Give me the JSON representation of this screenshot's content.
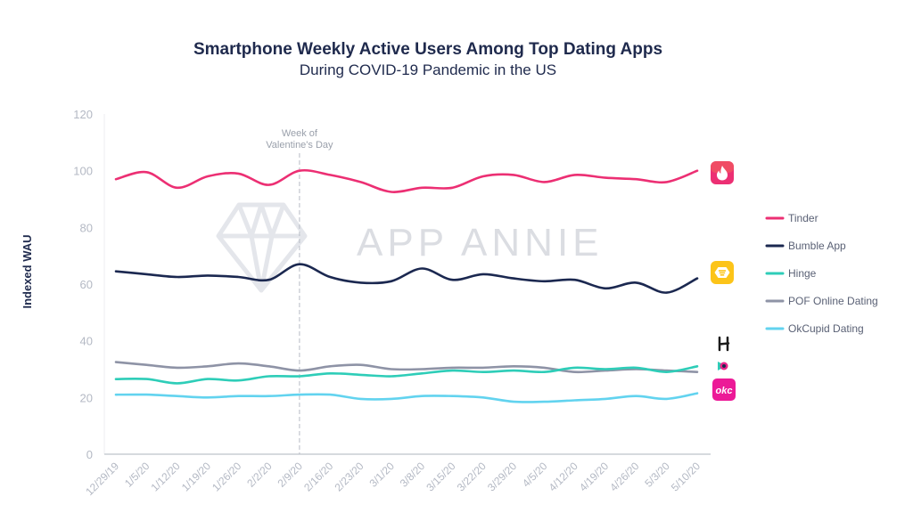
{
  "chart_data": {
    "type": "line",
    "title": "Smartphone Weekly Active Users Among Top Dating Apps",
    "subtitle": "During COVID-19 Pandemic in the US",
    "ylabel": "Indexed WAU",
    "xlabel": "",
    "ylim": [
      0,
      120
    ],
    "yticks": [
      0,
      20,
      40,
      60,
      80,
      100,
      120
    ],
    "grid": false,
    "legend": "right",
    "x": [
      "12/29/19",
      "1/5/20",
      "1/12/20",
      "1/19/20",
      "1/26/20",
      "2/2/20",
      "2/9/20",
      "2/16/20",
      "2/23/20",
      "3/1/20",
      "3/8/20",
      "3/15/20",
      "3/22/20",
      "3/29/20",
      "4/5/20",
      "4/12/20",
      "4/19/20",
      "4/26/20",
      "5/3/20",
      "5/10/20"
    ],
    "annotation": {
      "x": "2/9/20",
      "label_lines": [
        "Week of",
        "Valentine's Day"
      ]
    },
    "watermark": "APP ANNIE",
    "series": [
      {
        "name": "Tinder",
        "color": "#ec2f73",
        "icon": "tinder-icon",
        "values": [
          97,
          99.5,
          94,
          98,
          99,
          95,
          100,
          98.5,
          96,
          92.5,
          94,
          94,
          98,
          98.5,
          96,
          98.5,
          97.5,
          97,
          96,
          100
        ]
      },
      {
        "name": "Bumble App",
        "color": "#1b2850",
        "icon": "bumble-icon",
        "values": [
          64.5,
          63.5,
          62.5,
          63,
          62.5,
          61.5,
          67,
          62.5,
          60.5,
          61,
          65.5,
          61.5,
          63.5,
          62,
          61,
          61.5,
          58.5,
          60.5,
          57,
          62
        ]
      },
      {
        "name": "Hinge",
        "color": "#2ecdb8",
        "icon": "hinge-icon",
        "values": [
          26.5,
          26.5,
          25,
          26.5,
          26,
          27.5,
          27.5,
          28.5,
          28,
          27.5,
          28.5,
          29.5,
          29,
          29.5,
          29,
          30.5,
          30,
          30.5,
          29,
          31
        ]
      },
      {
        "name": "POF Online Dating",
        "color": "#8e93a6",
        "icon": "pof-icon",
        "values": [
          32.5,
          31.5,
          30.5,
          31,
          32,
          31,
          29.5,
          31,
          31.5,
          30,
          30,
          30.5,
          30.5,
          31,
          30.5,
          29,
          29.5,
          30,
          29.5,
          29
        ]
      },
      {
        "name": "OkCupid Dating",
        "color": "#62d3ef",
        "icon": "okcupid-icon",
        "values": [
          21,
          21,
          20.5,
          20,
          20.5,
          20.5,
          21,
          21,
          19.5,
          19.5,
          20.5,
          20.5,
          20,
          18.5,
          18.5,
          19,
          19.5,
          20.5,
          19.5,
          21.5
        ]
      }
    ],
    "icon_labels": {
      "okcupid": "okc"
    }
  }
}
